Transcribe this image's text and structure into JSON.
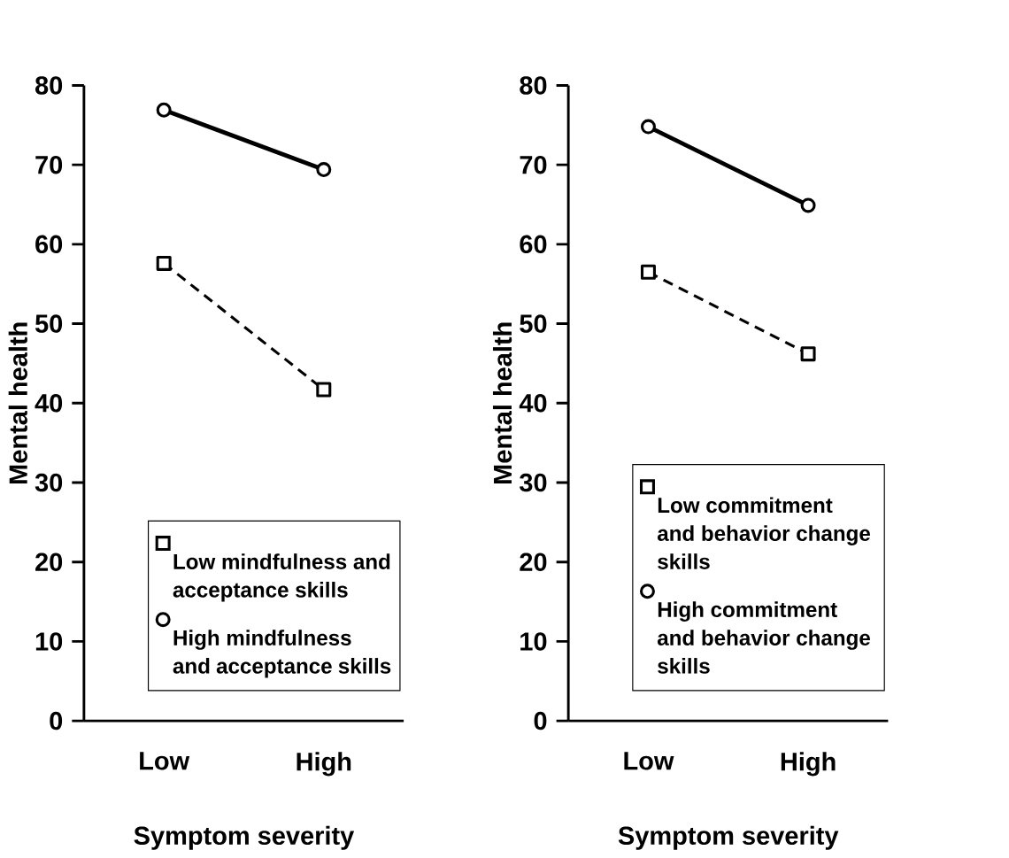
{
  "chart_data": [
    {
      "type": "line",
      "xlabel": "Symptom severity",
      "ylabel": "Mental health",
      "categories": [
        "Low",
        "High"
      ],
      "ylim": [
        0,
        80
      ],
      "yticks": [
        0,
        10,
        20,
        30,
        40,
        50,
        60,
        70,
        80
      ],
      "legend": "bottom right",
      "grid": false,
      "series": [
        {
          "name": "Low mindfulness and acceptance skills",
          "color": "#000000",
          "marker": "square",
          "line_style": "dashed",
          "values": [
            57.6,
            41.7
          ]
        },
        {
          "name": "High mindfulness and acceptance skills",
          "color": "#000000",
          "marker": "circle",
          "line_style": "solid",
          "values": [
            76.9,
            69.4
          ]
        }
      ]
    },
    {
      "type": "line",
      "xlabel": "Symptom severity",
      "ylabel": "Mental health",
      "categories": [
        "Low",
        "High"
      ],
      "ylim": [
        0,
        80
      ],
      "yticks": [
        0,
        10,
        20,
        30,
        40,
        50,
        60,
        70,
        80
      ],
      "legend": "bottom right",
      "grid": false,
      "series": [
        {
          "name": "Low commitment and behavior change skills",
          "color": "#000000",
          "marker": "square",
          "line_style": "dashed",
          "values": [
            56.5,
            46.2
          ]
        },
        {
          "name": "High commitment and behavior change skills",
          "color": "#000000",
          "marker": "circle",
          "line_style": "solid",
          "values": [
            74.8,
            64.9
          ]
        }
      ]
    }
  ]
}
